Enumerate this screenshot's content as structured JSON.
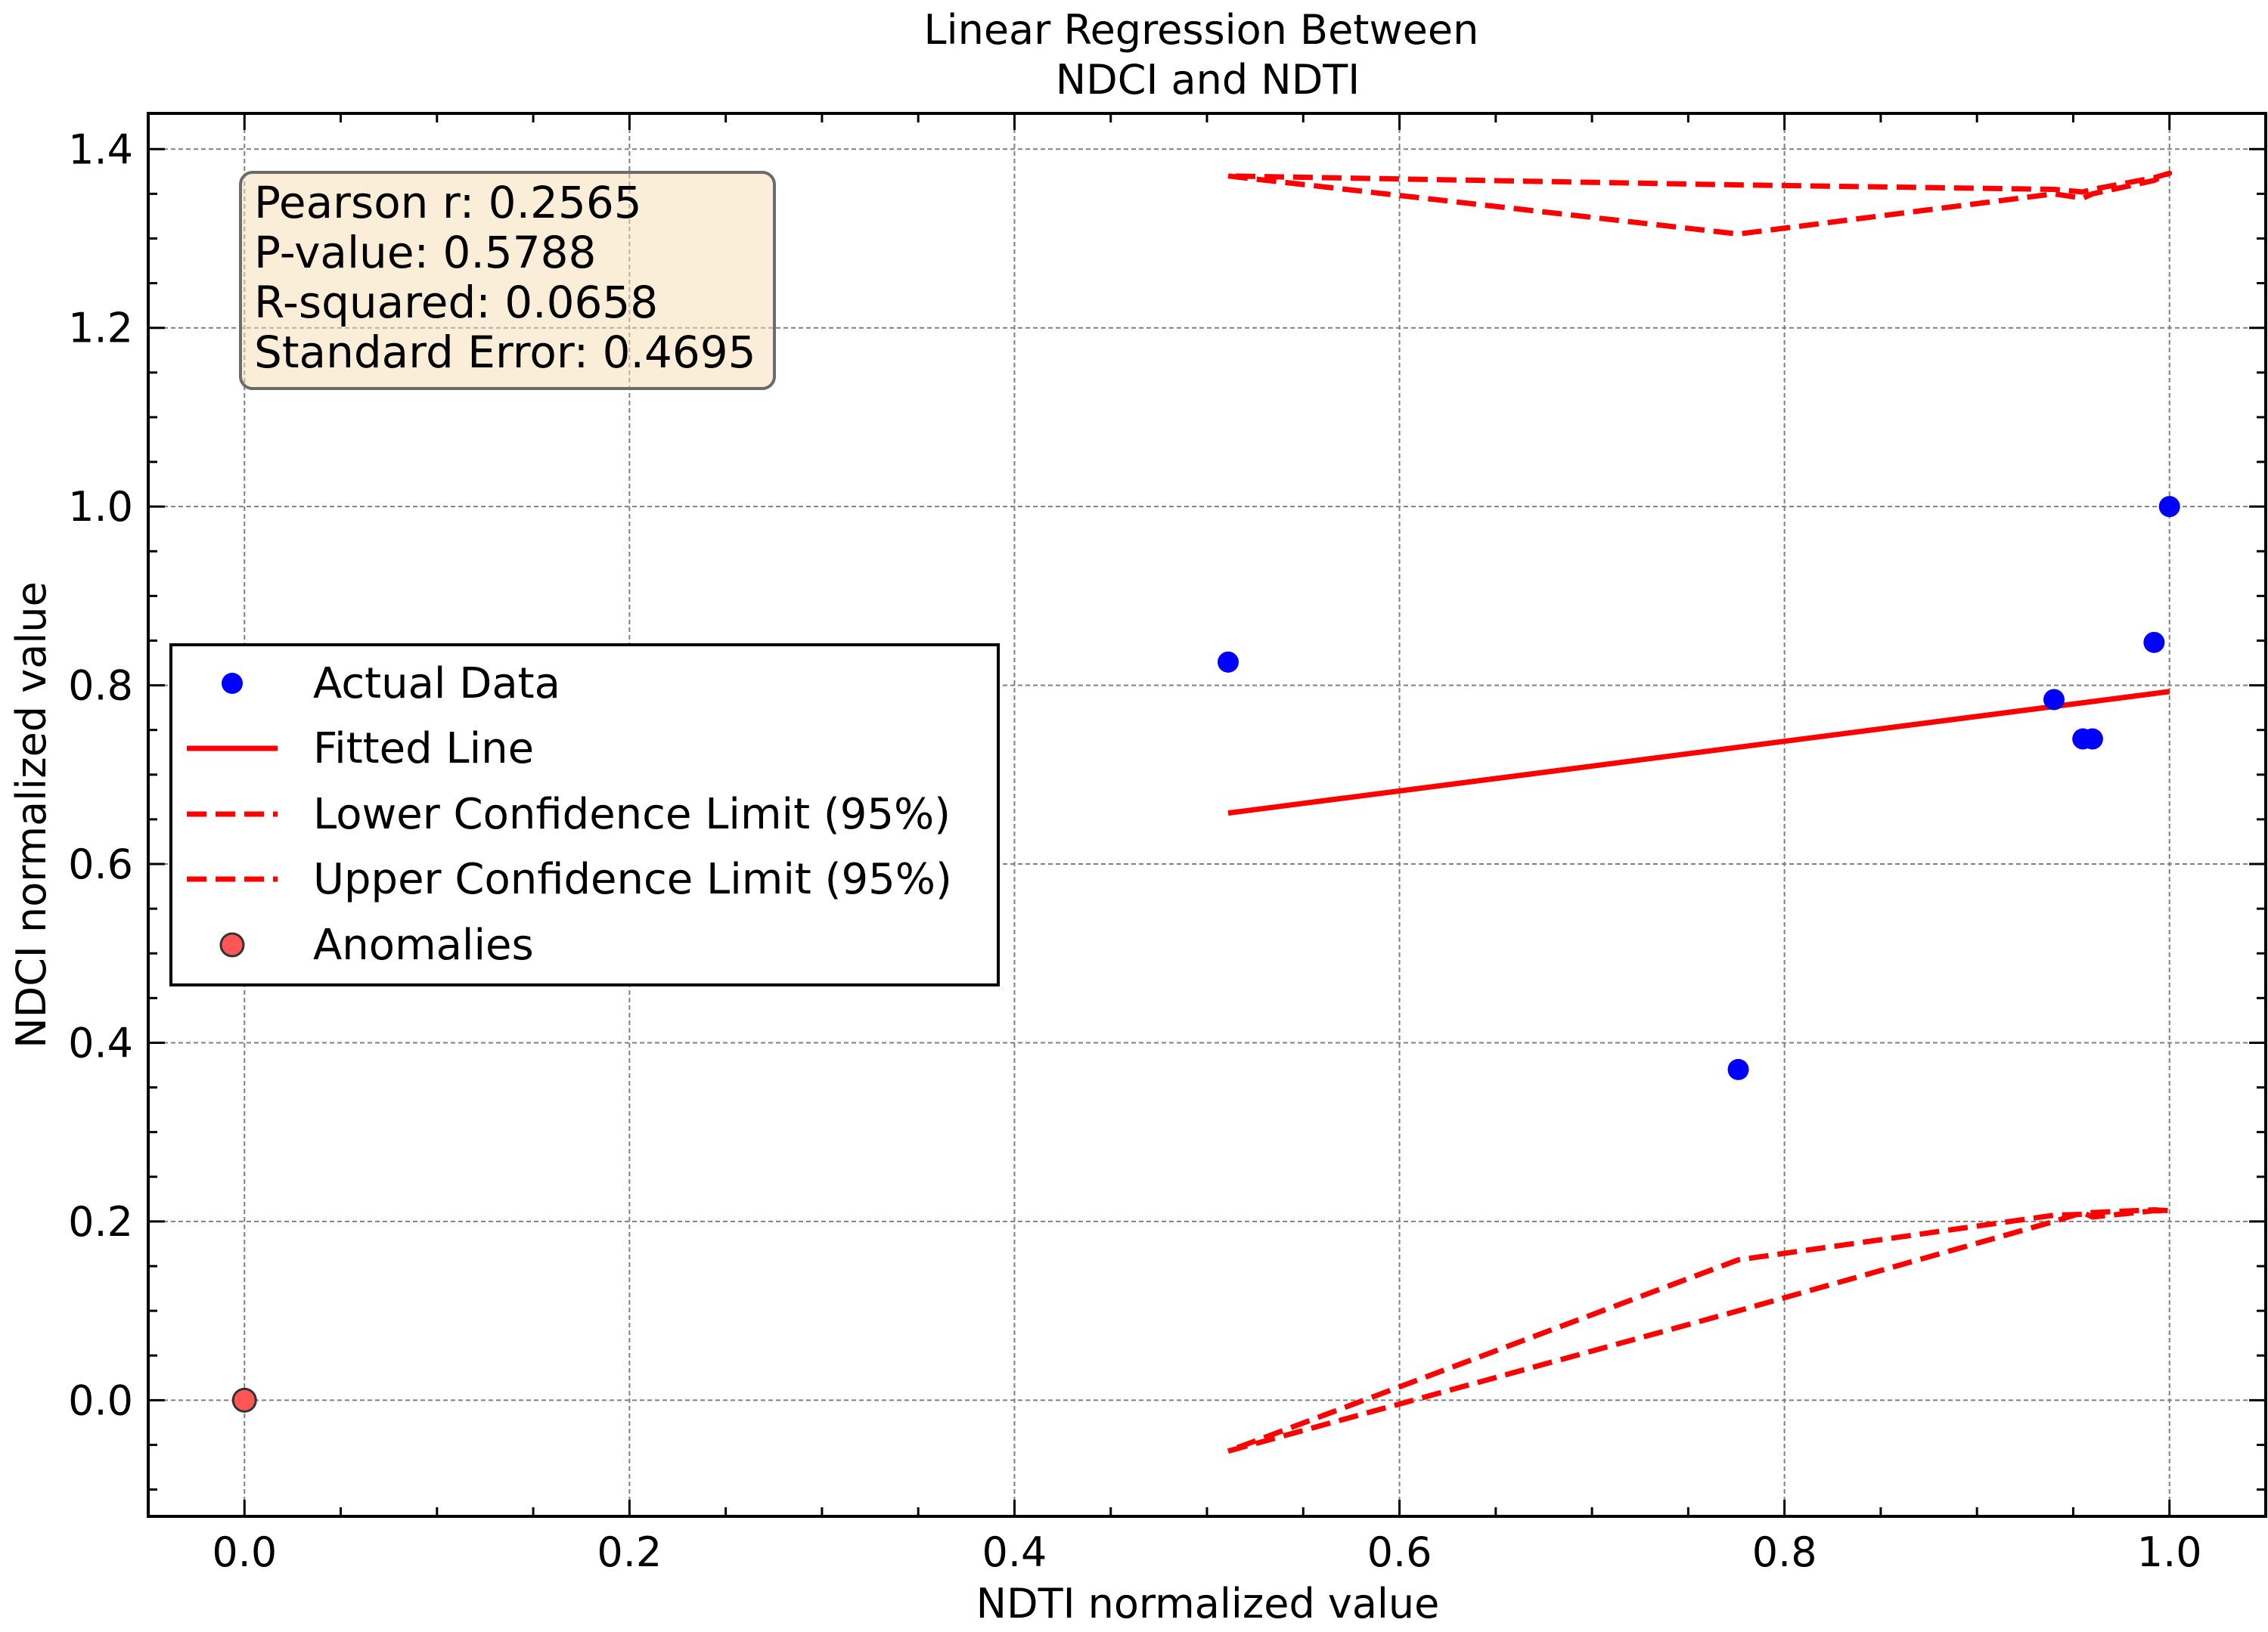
{
  "chart_data": {
    "type": "scatter",
    "title": "Linear Regression Between\nNDCI and NDTI",
    "xlabel": "NDTI normalized value",
    "ylabel": "NDCI normalized value",
    "xlim": [
      -0.05,
      1.05
    ],
    "ylim": [
      -0.13,
      1.44
    ],
    "x_ticks": [
      0.0,
      0.2,
      0.4,
      0.6,
      0.8,
      1.0
    ],
    "x_tick_labels": [
      "0.0",
      "0.2",
      "0.4",
      "0.6",
      "0.8",
      "1.0"
    ],
    "y_ticks": [
      0.0,
      0.2,
      0.4,
      0.6,
      0.8,
      1.0,
      1.2,
      1.4
    ],
    "y_tick_labels": [
      "0.0",
      "0.2",
      "0.4",
      "0.6",
      "0.8",
      "1.0",
      "1.2",
      "1.4"
    ],
    "grid": true,
    "legend_position": "center-left",
    "stats": [
      "Pearson r: 0.2565",
      "P-value: 0.5788",
      "R-squared: 0.0658",
      "Standard Error: 0.4695"
    ],
    "series": [
      {
        "name": "Actual Data",
        "kind": "scatter",
        "color": "#0000ff",
        "points": [
          [
            0.511,
            0.826
          ],
          [
            0.776,
            0.37
          ],
          [
            0.94,
            0.784
          ],
          [
            0.955,
            0.74
          ],
          [
            0.96,
            0.74
          ],
          [
            0.992,
            0.848
          ],
          [
            1.0,
            1.0
          ]
        ]
      },
      {
        "name": "Fitted Line",
        "kind": "line",
        "color": "#ff0000",
        "dash": "solid",
        "points": [
          [
            0.511,
            0.657
          ],
          [
            1.0,
            0.793
          ]
        ]
      },
      {
        "name": "Lower Confidence Limit (95%)",
        "kind": "line",
        "color": "#ff0000",
        "dash": "dashed",
        "points": [
          [
            0.511,
            -0.057
          ],
          [
            0.776,
            0.1
          ],
          [
            0.94,
            0.2
          ],
          [
            0.955,
            0.21
          ],
          [
            0.96,
            0.205
          ],
          [
            0.992,
            0.212
          ],
          [
            1.0,
            0.212
          ],
          [
            0.992,
            0.213
          ],
          [
            0.96,
            0.21
          ],
          [
            0.955,
            0.208
          ],
          [
            0.94,
            0.207
          ],
          [
            0.776,
            0.157
          ],
          [
            0.511,
            -0.057
          ]
        ]
      },
      {
        "name": "Upper Confidence Limit (95%)",
        "kind": "line",
        "color": "#ff0000",
        "dash": "dashed",
        "points": [
          [
            0.511,
            1.37
          ],
          [
            0.776,
            1.305
          ],
          [
            0.94,
            1.35
          ],
          [
            0.955,
            1.345
          ],
          [
            0.96,
            1.35
          ],
          [
            0.992,
            1.365
          ],
          [
            1.0,
            1.373
          ],
          [
            0.992,
            1.368
          ],
          [
            0.96,
            1.355
          ],
          [
            0.955,
            1.352
          ],
          [
            0.94,
            1.355
          ],
          [
            0.776,
            1.36
          ],
          [
            0.511,
            1.37
          ]
        ]
      },
      {
        "name": "Anomalies",
        "kind": "scatter",
        "color": "#ff5555",
        "edgecolor": "#333333",
        "points": [
          [
            0.0,
            0.0
          ]
        ]
      }
    ]
  }
}
